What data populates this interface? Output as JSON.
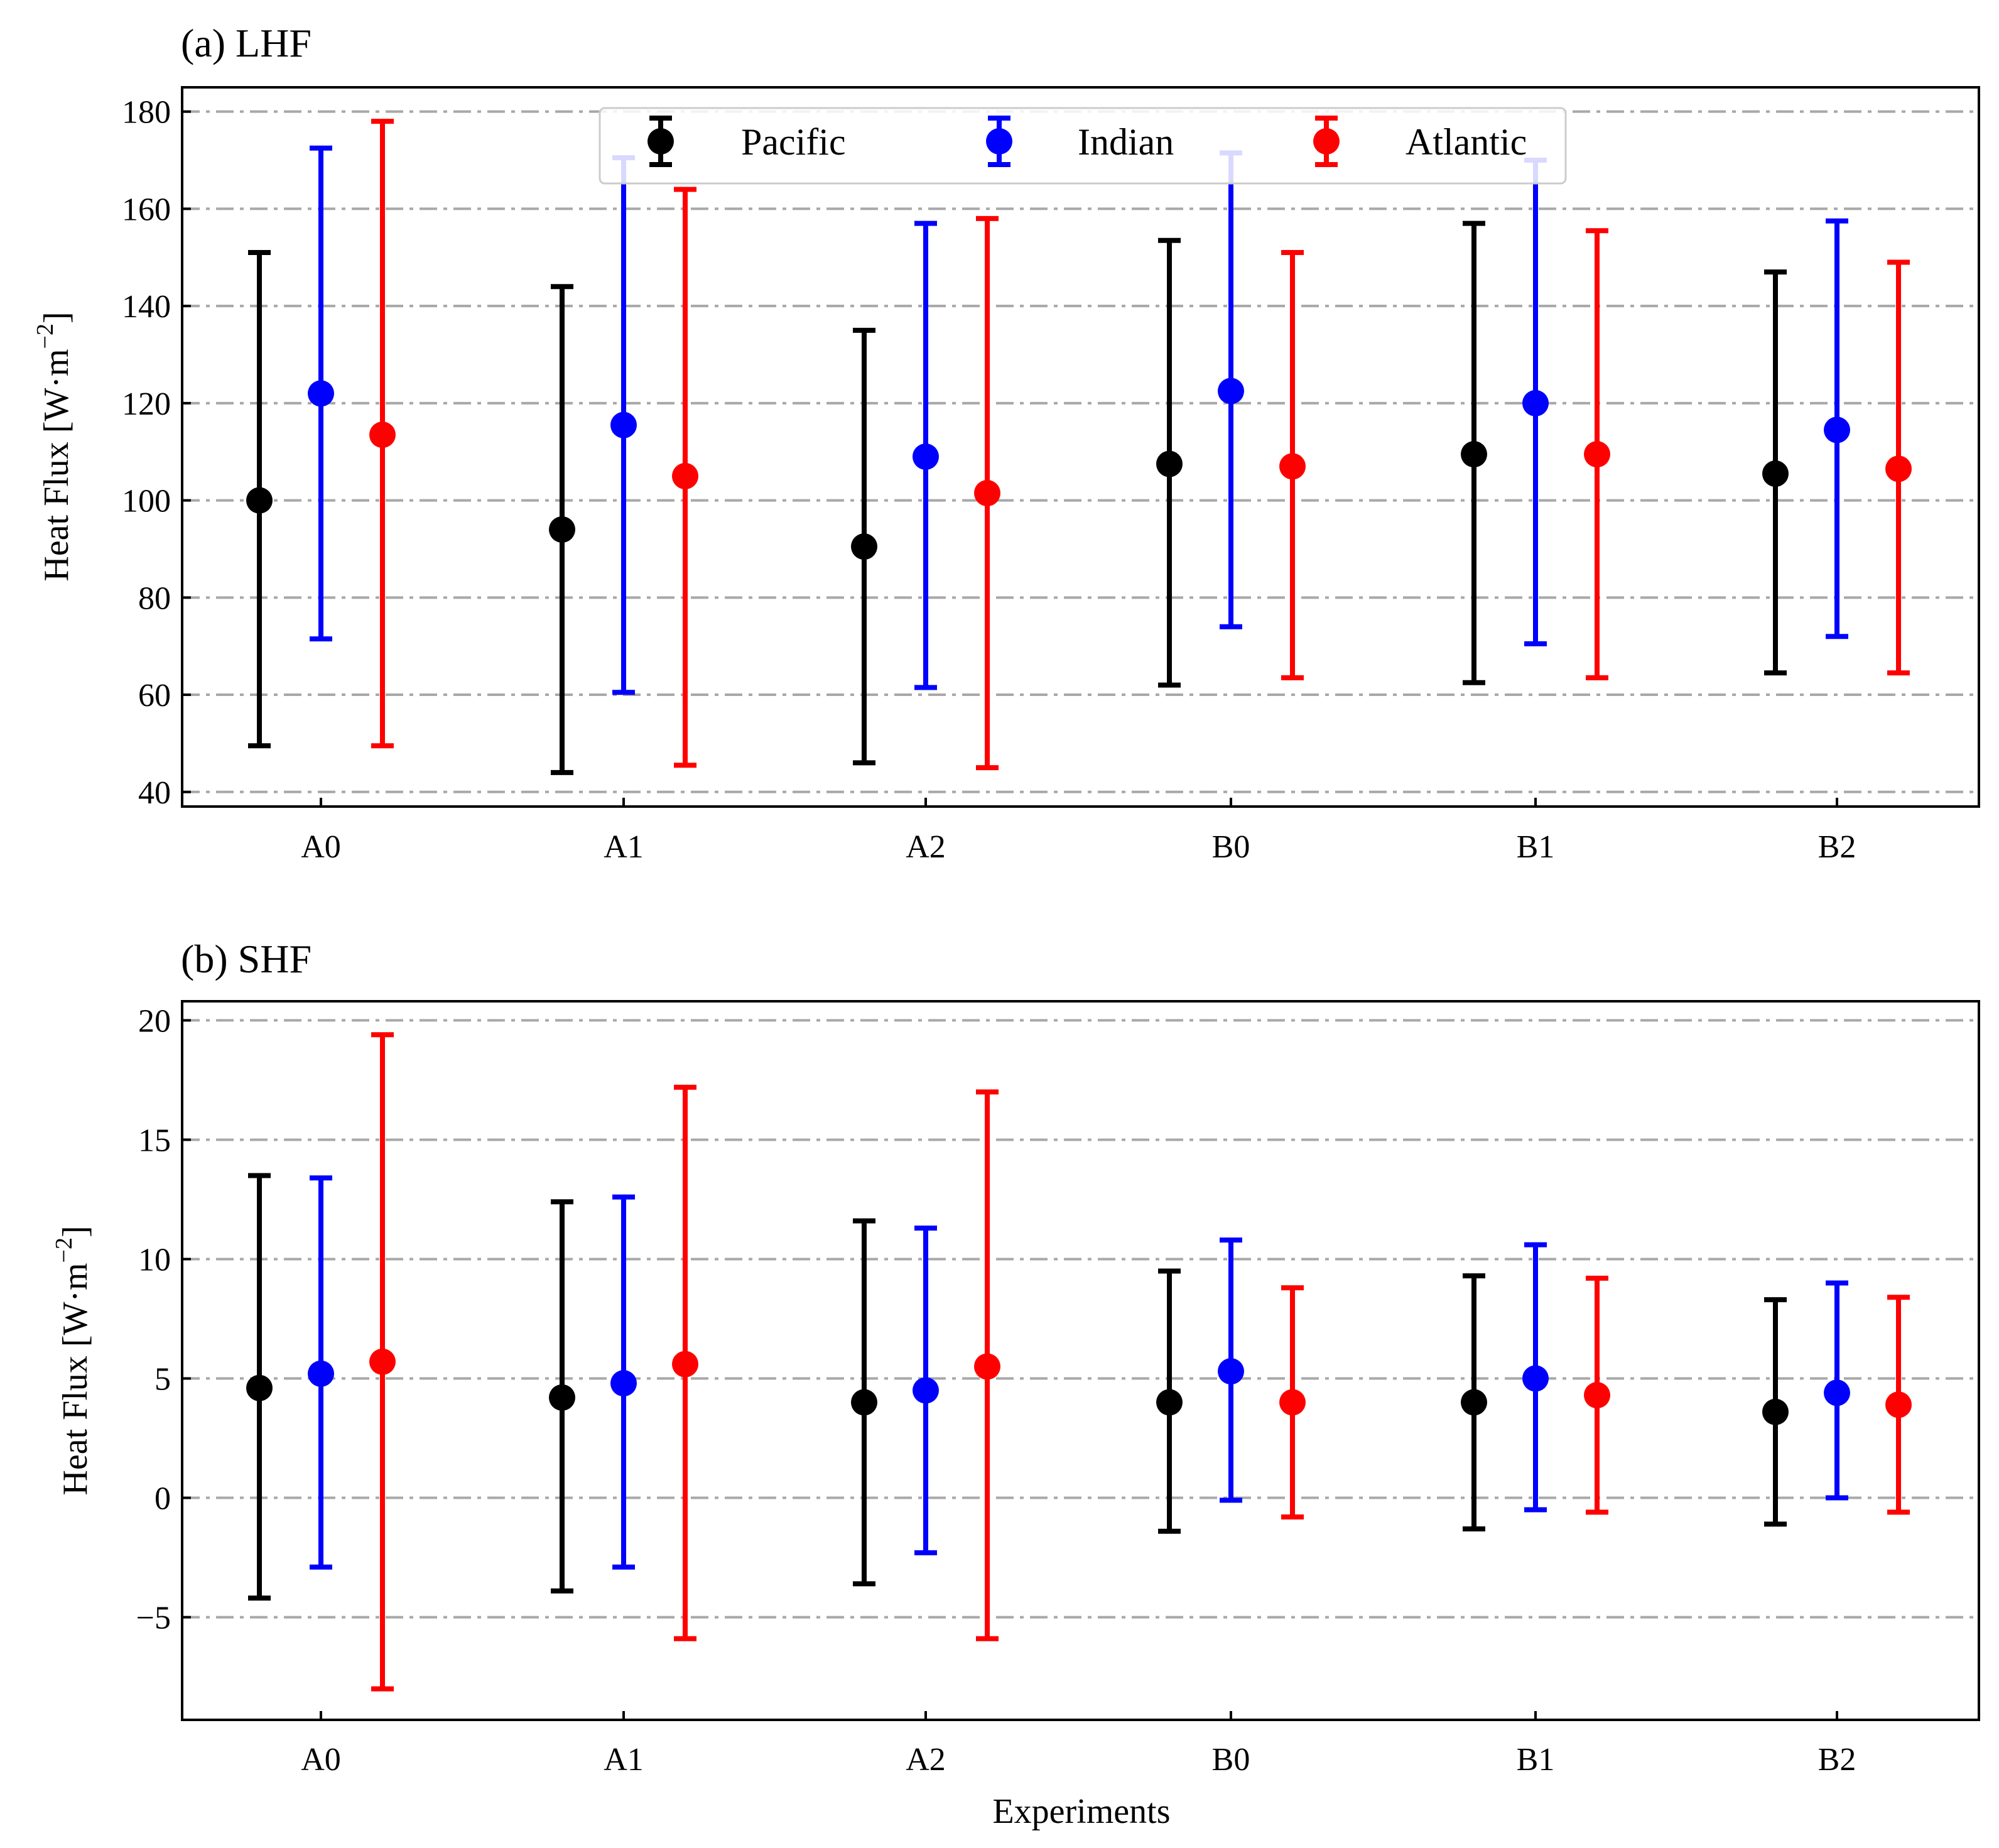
{
  "chart_data": [
    {
      "type": "errorbar",
      "title": "(a) LHF",
      "xlabel": "",
      "ylabel_main": "Heat Flux [W·m",
      "ylabel_exp": "−2",
      "ylabel_close": "]",
      "ylim": [
        37,
        185
      ],
      "yticks": [
        40,
        60,
        80,
        100,
        120,
        140,
        160,
        180
      ],
      "ytick_labels": [
        "40",
        "60",
        "80",
        "100",
        "120",
        "140",
        "160",
        "180"
      ],
      "grid": true,
      "legend": "top-center",
      "categories": [
        "A0",
        "A1",
        "A2",
        "B0",
        "B1",
        "B2"
      ],
      "series": [
        {
          "name": "Pacific",
          "color": "#000000",
          "mean": [
            100,
            94,
            90.5,
            107.5,
            109.5,
            105.5
          ],
          "lower": [
            49.5,
            44,
            46,
            62,
            62.5,
            64.5
          ],
          "upper": [
            151,
            144,
            135,
            153.5,
            157,
            147
          ]
        },
        {
          "name": "Indian",
          "color": "#0000ff",
          "mean": [
            122,
            115.5,
            109,
            122.5,
            120,
            114.5
          ],
          "lower": [
            71.5,
            60.5,
            61.5,
            74,
            70.5,
            72
          ],
          "upper": [
            172.5,
            170.5,
            157,
            171.5,
            170,
            157.5
          ]
        },
        {
          "name": "Atlantic",
          "color": "#ff0000",
          "mean": [
            113.5,
            105,
            101.5,
            107,
            109.5,
            106.5
          ],
          "lower": [
            49.5,
            45.5,
            45,
            63.5,
            63.5,
            64.5
          ],
          "upper": [
            178,
            164,
            158,
            151,
            155.5,
            149
          ]
        }
      ]
    },
    {
      "type": "errorbar",
      "title": "(b) SHF",
      "xlabel": "Experiments",
      "ylabel_main": "Heat Flux [W·m",
      "ylabel_exp": "−2",
      "ylabel_close": "]",
      "ylim": [
        -9.3,
        20.8
      ],
      "yticks": [
        -5,
        0,
        5,
        10,
        15,
        20
      ],
      "ytick_labels": [
        "−5",
        "0",
        "5",
        "10",
        "15",
        "20"
      ],
      "grid": true,
      "legend": "none",
      "categories": [
        "A0",
        "A1",
        "A2",
        "B0",
        "B1",
        "B2"
      ],
      "series": [
        {
          "name": "Pacific",
          "color": "#000000",
          "mean": [
            4.6,
            4.2,
            4.0,
            4.0,
            4.0,
            3.6
          ],
          "lower": [
            -4.2,
            -3.9,
            -3.6,
            -1.4,
            -1.3,
            -1.1
          ],
          "upper": [
            13.5,
            12.4,
            11.6,
            9.5,
            9.3,
            8.3
          ]
        },
        {
          "name": "Indian",
          "color": "#0000ff",
          "mean": [
            5.2,
            4.8,
            4.5,
            5.3,
            5.0,
            4.4
          ],
          "lower": [
            -2.9,
            -2.9,
            -2.3,
            -0.1,
            -0.5,
            0.0
          ],
          "upper": [
            13.4,
            12.6,
            11.3,
            10.8,
            10.6,
            9.0
          ]
        },
        {
          "name": "Atlantic",
          "color": "#ff0000",
          "mean": [
            5.7,
            5.6,
            5.5,
            4.0,
            4.3,
            3.9
          ],
          "lower": [
            -8.0,
            -5.9,
            -5.9,
            -0.8,
            -0.6,
            -0.6
          ],
          "upper": [
            19.4,
            17.2,
            17.0,
            8.8,
            9.2,
            8.4
          ]
        }
      ]
    }
  ]
}
